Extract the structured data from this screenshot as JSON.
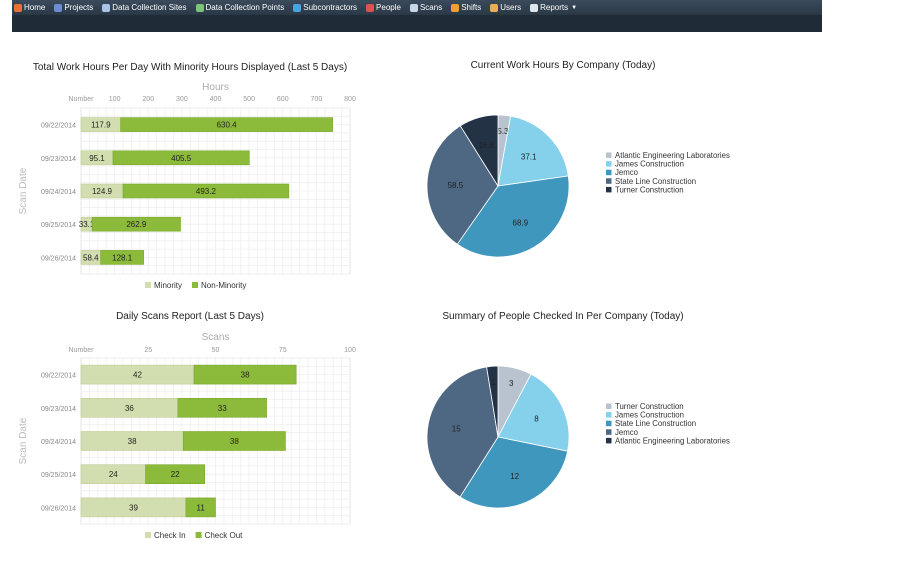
{
  "nav": {
    "items": [
      {
        "label": "Home",
        "icon": "home-icon",
        "color": "#e8703a"
      },
      {
        "label": "Projects",
        "icon": "projects-icon",
        "color": "#6c8cd5"
      },
      {
        "label": "Data Collection Sites",
        "icon": "sites-icon",
        "color": "#a9c4e8"
      },
      {
        "label": "Data Collection Points",
        "icon": "points-icon",
        "color": "#7cc576"
      },
      {
        "label": "Subcontractors",
        "icon": "subcontractors-icon",
        "color": "#4aa3df"
      },
      {
        "label": "People",
        "icon": "people-icon",
        "color": "#d9534f"
      },
      {
        "label": "Scans",
        "icon": "scans-icon",
        "color": "#c9d6e8"
      },
      {
        "label": "Shifts",
        "icon": "shifts-icon",
        "color": "#f0a030"
      },
      {
        "label": "Users",
        "icon": "users-icon",
        "color": "#e8b050"
      },
      {
        "label": "Reports",
        "icon": "reports-icon",
        "color": "#dfe6ee"
      }
    ]
  },
  "chart_data": [
    {
      "type": "bar",
      "orientation": "horizontal",
      "stacked": true,
      "title": "Total Work Hours Per Day With Minority Hours Displayed (Last 5 Days)",
      "xlabel": "Hours",
      "ylabel": "Scan Date",
      "axis_first_label": "Number",
      "xlim": [
        0,
        800
      ],
      "xticks": [
        100,
        200,
        300,
        400,
        500,
        600,
        700,
        800
      ],
      "categories": [
        "09/22/2014",
        "09/23/2014",
        "09/24/2014",
        "09/25/2014",
        "09/26/2014"
      ],
      "series": [
        {
          "name": "Minority",
          "values": [
            117.9,
            95.1,
            124.9,
            33.1,
            58.4
          ],
          "color": "#d3deb0"
        },
        {
          "name": "Non-Minority",
          "values": [
            630.4,
            405.5,
            493.2,
            262.9,
            128.1
          ],
          "color": "#8cba3a"
        }
      ],
      "legend": "bottom",
      "grid": true
    },
    {
      "type": "pie",
      "title": "Current Work Hours By Company (Today)",
      "slices": [
        {
          "label": "Atlantic Engineering Laboratories",
          "value": 5.3,
          "color": "#b9c3cf"
        },
        {
          "label": "James Construction",
          "value": 37.1,
          "color": "#85d1ec"
        },
        {
          "label": "Jemco",
          "value": 68.9,
          "color": "#3f97bd"
        },
        {
          "label": "State Line Construction",
          "value": 58.5,
          "color": "#4e6884"
        },
        {
          "label": "Turner Construction",
          "value": 16.6,
          "color": "#233244"
        }
      ],
      "legend": "right"
    },
    {
      "type": "bar",
      "orientation": "horizontal",
      "stacked": true,
      "title": "Daily Scans Report (Last 5 Days)",
      "xlabel": "Scans",
      "ylabel": "Scan Date",
      "axis_first_label": "Number",
      "xlim": [
        0,
        100
      ],
      "xticks": [
        25,
        50,
        75,
        100
      ],
      "categories": [
        "09/22/2014",
        "09/23/2014",
        "09/24/2014",
        "09/25/2014",
        "09/26/2014"
      ],
      "series": [
        {
          "name": "Check In",
          "values": [
            42,
            36,
            38,
            24,
            39
          ],
          "color": "#d3deb0"
        },
        {
          "name": "Check Out",
          "values": [
            38,
            33,
            38,
            22,
            11
          ],
          "color": "#8cba3a"
        }
      ],
      "legend": "bottom",
      "grid": true
    },
    {
      "type": "pie",
      "title": "Summary of People Checked In Per Company (Today)",
      "slices": [
        {
          "label": "Turner Construction",
          "value": 3,
          "color": "#b9c3cf"
        },
        {
          "label": "James Construction",
          "value": 8,
          "color": "#85d1ec"
        },
        {
          "label": "State Line Construction",
          "value": 12,
          "color": "#3f97bd"
        },
        {
          "label": "Jemco",
          "value": 15,
          "color": "#4e6884"
        },
        {
          "label": "Atlantic Engineering Laboratories",
          "value": 1,
          "color": "#233244"
        }
      ],
      "legend": "right"
    }
  ]
}
